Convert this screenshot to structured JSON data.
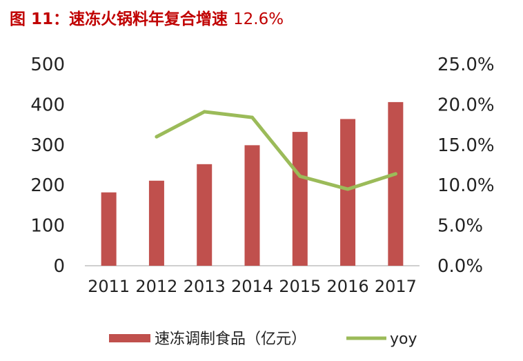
{
  "figure": {
    "prefix": "图 11：",
    "title": "速冻火锅料年复合增速",
    "title_value": "12.6%"
  },
  "colors": {
    "title": "#c00000",
    "bar": "#c0504d",
    "line": "#9bbb59",
    "axis": "#bfbfbf"
  },
  "chart_data": {
    "type": "bar",
    "categories": [
      "2011",
      "2012",
      "2013",
      "2014",
      "2015",
      "2016",
      "2017"
    ],
    "series": [
      {
        "name": "速冻调制食品（亿元）",
        "type": "bar",
        "axis": "left",
        "values": [
          182,
          211,
          252,
          299,
          332,
          364,
          406
        ]
      },
      {
        "name": "yoy",
        "type": "line",
        "axis": "right",
        "values": [
          null,
          16.0,
          19.1,
          18.4,
          11.1,
          9.5,
          11.4
        ]
      }
    ],
    "y_left": {
      "lim": [
        0,
        500
      ],
      "ticks": [
        "0",
        "100",
        "200",
        "300",
        "400",
        "500"
      ]
    },
    "y_right": {
      "lim": [
        0,
        25
      ],
      "ticks": [
        "0.0%",
        "5.0%",
        "10.0%",
        "15.0%",
        "20.0%",
        "25.0%"
      ]
    },
    "grid": false,
    "legend_position": "bottom"
  }
}
